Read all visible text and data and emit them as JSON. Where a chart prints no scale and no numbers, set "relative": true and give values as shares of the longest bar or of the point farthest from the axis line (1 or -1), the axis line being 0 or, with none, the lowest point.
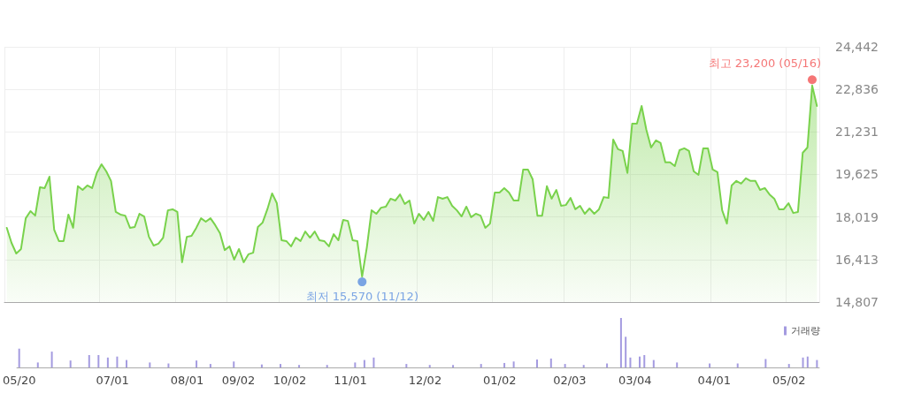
{
  "chart_data": [
    {
      "type": "area",
      "categories": [
        null,
        null,
        null,
        null,
        null,
        null,
        null,
        null,
        null,
        null,
        null,
        null,
        null,
        null,
        null,
        null,
        null,
        null,
        null,
        null,
        null,
        null,
        null,
        null,
        null,
        null,
        null,
        null,
        null,
        null,
        null,
        null,
        null,
        null,
        null,
        null,
        null,
        null,
        null,
        null,
        null,
        null,
        null,
        null,
        null,
        null,
        null,
        null,
        null,
        null,
        null,
        null,
        null,
        null,
        null,
        null,
        null,
        null,
        null,
        null,
        null,
        null,
        null,
        null,
        null,
        null,
        null,
        null,
        null,
        null,
        null,
        null,
        null,
        null,
        null,
        null,
        null,
        null,
        null,
        null,
        null,
        null,
        null,
        null,
        null,
        null,
        null,
        null,
        null,
        null,
        null,
        null,
        null,
        null,
        null,
        null,
        null,
        null,
        null,
        null,
        null,
        null,
        null,
        null,
        null,
        null,
        null,
        null,
        null,
        null,
        null,
        null,
        null,
        null,
        null,
        null,
        null,
        null,
        null,
        null,
        null,
        null,
        null,
        null,
        null,
        null,
        null,
        null,
        null,
        null,
        null,
        null,
        null,
        null,
        null,
        null,
        null,
        null,
        null,
        null,
        null,
        null,
        null,
        null,
        null,
        null,
        null,
        null,
        null,
        null,
        null,
        null,
        null,
        null,
        null,
        null,
        null,
        null,
        null,
        null,
        null,
        null,
        null,
        null,
        null,
        null,
        null,
        null,
        null,
        null,
        null,
        null
      ],
      "series": [
        {
          "color": "#79d24c",
          "values": [
            17610,
            17040,
            16640,
            16810,
            17970,
            18240,
            18070,
            19140,
            19110,
            19540,
            17540,
            17110,
            17110,
            18110,
            17610,
            19180,
            19040,
            19210,
            19110,
            19680,
            20010,
            19740,
            19380,
            18210,
            18110,
            18070,
            17610,
            17640,
            18140,
            18040,
            17270,
            16940,
            17010,
            17240,
            18270,
            18310,
            18210,
            16310,
            17270,
            17310,
            17610,
            17970,
            17840,
            17970,
            17710,
            17410,
            16770,
            16910,
            16410,
            16810,
            16310,
            16610,
            16670,
            17640,
            17810,
            18310,
            18910,
            18540,
            17140,
            17110,
            16910,
            17240,
            17110,
            17470,
            17240,
            17470,
            17140,
            17110,
            16910,
            17370,
            17140,
            17910,
            17870,
            17140,
            17110,
            15770,
            16870,
            18270,
            18140,
            18370,
            18410,
            18710,
            18640,
            18870,
            18510,
            18640,
            17770,
            18140,
            17910,
            18210,
            17870,
            18770,
            18710,
            18770,
            18440,
            18270,
            18040,
            18410,
            18010,
            18140,
            18070,
            17610,
            17770,
            18940,
            18940,
            19110,
            18940,
            18640,
            18640,
            19810,
            19810,
            19440,
            18070,
            18070,
            19180,
            18710,
            19040,
            18440,
            18470,
            18740,
            18310,
            18440,
            18140,
            18340,
            18140,
            18310,
            18770,
            18740,
            20940,
            20580,
            20510,
            19680,
            21540,
            21540,
            22210,
            21310,
            20640,
            20910,
            20810,
            20080,
            20080,
            19940,
            20540,
            20610,
            20510,
            19740,
            19610,
            20610,
            20610,
            19810,
            19710,
            18270,
            17770,
            19210,
            19380,
            19280,
            19480,
            19380,
            19380,
            19040,
            19110,
            18870,
            18710,
            18310,
            18310,
            18540,
            18170,
            18210,
            20440,
            20640,
            22980,
            22210
          ]
        },
        {
          "type": "scatter",
          "values": [
            null,
            null,
            null,
            null,
            null,
            null,
            null,
            null,
            null,
            null,
            null,
            null,
            null,
            null,
            null,
            null,
            null,
            null,
            null,
            null,
            null,
            null,
            null,
            null,
            null,
            null,
            null,
            null,
            null,
            null,
            null,
            null,
            null,
            null,
            null,
            null,
            null,
            null,
            null,
            null,
            null,
            null,
            null,
            null,
            null,
            null,
            null,
            null,
            null,
            null,
            null,
            null,
            null,
            null,
            null,
            null,
            null,
            null,
            null,
            null,
            null,
            null,
            null,
            null,
            null,
            null,
            null,
            null,
            null,
            null,
            null,
            null,
            null,
            null,
            null,
            15570,
            null,
            null,
            null,
            null,
            null,
            null,
            null,
            null,
            null,
            null,
            null,
            null,
            null,
            null,
            null,
            null,
            null,
            null,
            null,
            null,
            null,
            null,
            null,
            null,
            null,
            null,
            null,
            null,
            null,
            null,
            null,
            null,
            null,
            null,
            null,
            null,
            null,
            null,
            null,
            null,
            null,
            null,
            null,
            null,
            null,
            null,
            null,
            null,
            null,
            null,
            null,
            null,
            null,
            null,
            null,
            null,
            null,
            null,
            null,
            null,
            null,
            null,
            null,
            null,
            null,
            null,
            null,
            null,
            null,
            null,
            null,
            null,
            null,
            null,
            null,
            null,
            null,
            null,
            null,
            null,
            null,
            null,
            null,
            null,
            null,
            null,
            null,
            null,
            null,
            null,
            null,
            null,
            null,
            null,
            23200,
            null
          ],
          "colors": [
            null,
            null,
            null,
            null,
            null,
            null,
            null,
            null,
            null,
            null,
            null,
            null,
            null,
            null,
            null,
            null,
            null,
            null,
            null,
            null,
            null,
            null,
            null,
            null,
            null,
            null,
            null,
            null,
            null,
            null,
            null,
            null,
            null,
            null,
            null,
            null,
            null,
            null,
            null,
            null,
            null,
            null,
            null,
            null,
            null,
            null,
            null,
            null,
            null,
            null,
            null,
            null,
            null,
            null,
            null,
            null,
            null,
            null,
            null,
            null,
            null,
            null,
            null,
            null,
            null,
            null,
            null,
            null,
            null,
            null,
            null,
            null,
            null,
            null,
            null,
            "#5b8fe0",
            null,
            null,
            null,
            null,
            null,
            null,
            null,
            null,
            null,
            null,
            null,
            null,
            null,
            null,
            null,
            null,
            null,
            null,
            null,
            null,
            null,
            null,
            null,
            null,
            null,
            null,
            null,
            null,
            null,
            null,
            null,
            null,
            null,
            null,
            null,
            null,
            null,
            null,
            null,
            null,
            null,
            null,
            null,
            null,
            null,
            null,
            null,
            null,
            null,
            null,
            null,
            null,
            null,
            null,
            null,
            null,
            null,
            null,
            null,
            null,
            null,
            null,
            null,
            null,
            null,
            null,
            null,
            null,
            null,
            null,
            null,
            null,
            null,
            null,
            null,
            null,
            null,
            null,
            null,
            null,
            null,
            null,
            null,
            null,
            null,
            null,
            null,
            null,
            null,
            null,
            null,
            null,
            null,
            null,
            "#f25454",
            null
          ],
          "value_labels": [
            null,
            null,
            null,
            null,
            null,
            null,
            null,
            null,
            null,
            null,
            null,
            null,
            null,
            null,
            null,
            null,
            null,
            null,
            null,
            null,
            null,
            null,
            null,
            null,
            null,
            null,
            null,
            null,
            null,
            null,
            null,
            null,
            null,
            null,
            null,
            null,
            null,
            null,
            null,
            null,
            null,
            null,
            null,
            null,
            null,
            null,
            null,
            null,
            null,
            null,
            null,
            null,
            null,
            null,
            null,
            null,
            null,
            null,
            null,
            null,
            null,
            null,
            null,
            null,
            null,
            null,
            null,
            null,
            null,
            null,
            null,
            null,
            null,
            null,
            null,
            "최저 15,570 (11/12)",
            null,
            null,
            null,
            null,
            null,
            null,
            null,
            null,
            null,
            null,
            null,
            null,
            null,
            null,
            null,
            null,
            null,
            null,
            null,
            null,
            null,
            null,
            null,
            null,
            null,
            null,
            null,
            null,
            null,
            null,
            null,
            null,
            null,
            null,
            null,
            null,
            null,
            null,
            null,
            null,
            null,
            null,
            null,
            null,
            null,
            null,
            null,
            null,
            null,
            null,
            null,
            null,
            null,
            null,
            null,
            null,
            null,
            null,
            null,
            null,
            null,
            null,
            null,
            null,
            null,
            null,
            null,
            null,
            null,
            null,
            null,
            null,
            null,
            null,
            null,
            null,
            null,
            null,
            null,
            null,
            null,
            null,
            null,
            null,
            null,
            null,
            null,
            null,
            null,
            null,
            null,
            null,
            null,
            null,
            "최고 23,200 (05/16)",
            null
          ]
        }
      ],
      "ylim": [
        14807,
        24442
      ],
      "yticks": [
        {
          "value": 14807,
          "label": "14,807"
        },
        {
          "value": 16413,
          "label": "16,413"
        },
        {
          "value": 18019,
          "label": "18,019"
        },
        {
          "value": 19625,
          "label": "19,625"
        },
        {
          "value": 21231,
          "label": "21,231"
        },
        {
          "value": 22836,
          "label": "22,836"
        },
        {
          "value": 24442,
          "label": "24,442"
        }
      ],
      "grid": true,
      "tick_labels": "y"
    },
    {
      "type": "bar",
      "relative": true,
      "legend": "top right",
      "categories": [
        "05/20",
        null,
        null,
        null,
        null,
        null,
        null,
        null,
        null,
        null,
        null,
        null,
        null,
        null,
        null,
        null,
        null,
        null,
        null,
        null,
        "07/01",
        null,
        null,
        null,
        null,
        null,
        null,
        null,
        null,
        null,
        null,
        null,
        null,
        null,
        null,
        null,
        "08/01",
        null,
        null,
        null,
        null,
        null,
        null,
        null,
        null,
        null,
        null,
        "09/02",
        null,
        null,
        null,
        null,
        null,
        null,
        null,
        null,
        null,
        null,
        "10/02",
        null,
        null,
        null,
        null,
        null,
        null,
        null,
        null,
        null,
        null,
        null,
        null,
        "11/01",
        null,
        null,
        null,
        null,
        null,
        null,
        null,
        null,
        null,
        null,
        null,
        null,
        null,
        null,
        null,
        "12/02",
        null,
        null,
        null,
        null,
        null,
        null,
        null,
        null,
        null,
        null,
        null,
        null,
        null,
        null,
        null,
        "01/02",
        null,
        null,
        null,
        null,
        null,
        null,
        null,
        null,
        null,
        null,
        null,
        null,
        null,
        null,
        "02/03",
        null,
        null,
        null,
        null,
        null,
        null,
        null,
        null,
        null,
        null,
        null,
        null,
        null,
        "03/04",
        null,
        null,
        null,
        null,
        null,
        null,
        null,
        null,
        null,
        null,
        null,
        null,
        null,
        null,
        null,
        null,
        "04/01",
        null,
        null,
        null,
        null,
        null,
        null,
        null,
        null,
        null,
        null,
        null,
        null,
        null,
        null,
        null,
        "05/02",
        null,
        null,
        null,
        null,
        null,
        null
      ],
      "series": [
        {
          "name": "거래량",
          "color": "#a49be0",
          "values": [
            0.38,
            null,
            null,
            null,
            0.1,
            null,
            null,
            0.32,
            null,
            null,
            null,
            0.14,
            null,
            null,
            null,
            0.25,
            null,
            0.25,
            null,
            0.2,
            null,
            0.22,
            null,
            0.15,
            null,
            null,
            null,
            null,
            0.1,
            null,
            null,
            null,
            0.08,
            null,
            null,
            null,
            null,
            null,
            0.14,
            null,
            null,
            0.07,
            null,
            null,
            null,
            null,
            0.12,
            null,
            null,
            null,
            null,
            null,
            0.06,
            null,
            null,
            null,
            0.07,
            null,
            null,
            null,
            0.05,
            null,
            null,
            null,
            null,
            null,
            0.05,
            null,
            null,
            null,
            null,
            null,
            0.1,
            null,
            0.15,
            null,
            0.2,
            null,
            null,
            null,
            null,
            null,
            null,
            0.07,
            null,
            null,
            null,
            null,
            0.05,
            null,
            null,
            null,
            null,
            0.05,
            null,
            null,
            null,
            null,
            null,
            0.07,
            null,
            null,
            null,
            null,
            0.09,
            null,
            0.12,
            null,
            null,
            null,
            null,
            0.16,
            null,
            null,
            0.18,
            null,
            null,
            0.07,
            null,
            null,
            null,
            0.05,
            null,
            null,
            null,
            null,
            0.08,
            null,
            null,
            1,
            0.62,
            0.2,
            null,
            0.22,
            0.25,
            null,
            0.15,
            null,
            null,
            null,
            null,
            0.1,
            null,
            null,
            null,
            null,
            null,
            null,
            0.08,
            null,
            null,
            null,
            null,
            null,
            0.08,
            null,
            null,
            null,
            null,
            null,
            0.17,
            null,
            null,
            null,
            null,
            0.07,
            null,
            null,
            0.2,
            0.22,
            null,
            0.15
          ]
        }
      ],
      "tick_labels": "x"
    }
  ]
}
